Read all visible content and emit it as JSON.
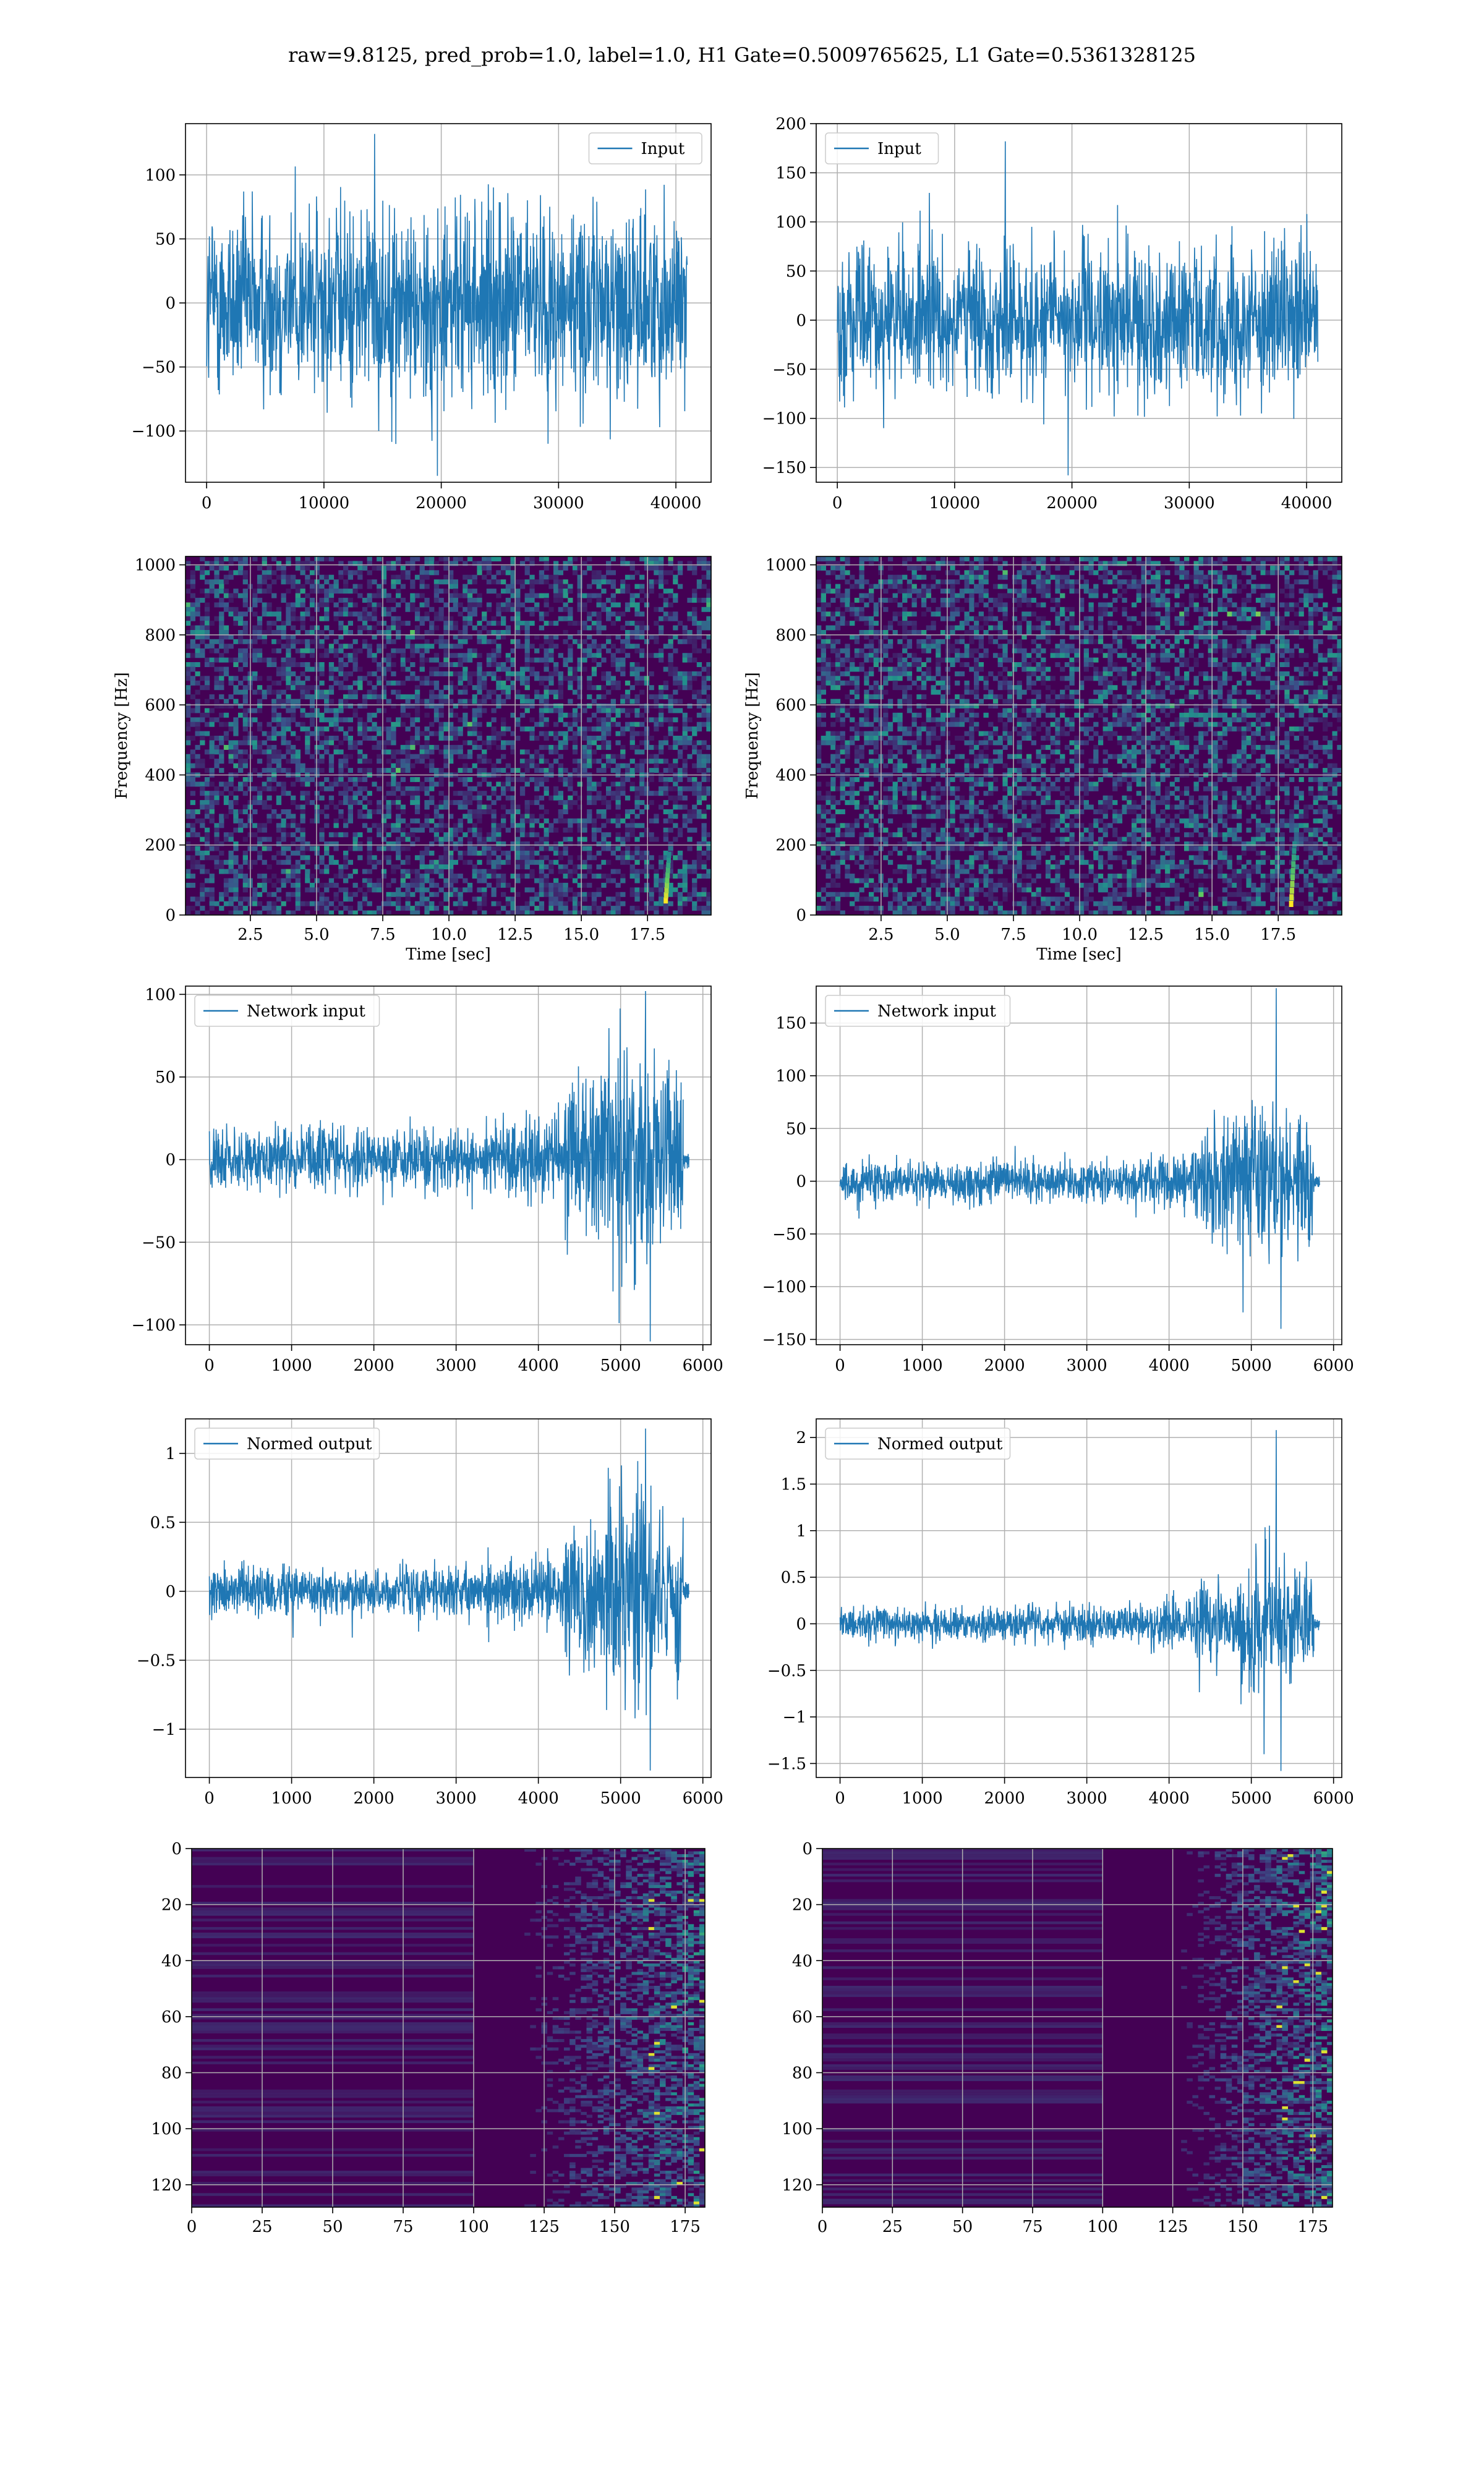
{
  "suptitle": "raw=9.8125, pred_prob=1.0, label=1.0, H1 Gate=0.5009765625, L1 Gate=0.5361328125",
  "colors": {
    "line": "#1f77b4",
    "grid": "#b0b0b0",
    "viridis_low": "#440154",
    "viridis_mid": "#21918c",
    "viridis_high": "#fde725"
  },
  "chart_data": [
    {
      "type": "line",
      "panel": "row1-left",
      "legend": [
        "Input"
      ],
      "legend_loc": "upper right",
      "xlim": [
        -1800,
        43000
      ],
      "ylim": [
        -140,
        140
      ],
      "xticks": [
        0,
        10000,
        20000,
        30000,
        40000
      ],
      "yticks": [
        -100,
        -50,
        0,
        50,
        100
      ],
      "signal": {
        "x_start": 0,
        "x_end": 40960,
        "core_amp": 80,
        "peak_amp": 132,
        "trough_amp": -135,
        "envelope": [
          1,
          1,
          1,
          1,
          1,
          1,
          1,
          1,
          1,
          1
        ]
      },
      "grid": true
    },
    {
      "type": "line",
      "panel": "row1-right",
      "legend": [
        "Input"
      ],
      "legend_loc": "upper left",
      "xlim": [
        -1800,
        43000
      ],
      "ylim": [
        -165,
        200
      ],
      "xticks": [
        0,
        10000,
        20000,
        30000,
        40000
      ],
      "yticks": [
        -150,
        -100,
        -50,
        0,
        50,
        100,
        150,
        200
      ],
      "signal": {
        "x_start": 0,
        "x_end": 40960,
        "core_amp": 80,
        "peak_amp": 182,
        "trough_amp": -158,
        "envelope": [
          1,
          1,
          1,
          1,
          1,
          1,
          1,
          1,
          1,
          1
        ]
      },
      "grid": true
    },
    {
      "type": "heatmap",
      "panel": "row2-left",
      "xlabel": "Time [sec]",
      "ylabel": "Frequency [Hz]",
      "xlim": [
        0.05,
        19.9
      ],
      "ylim": [
        0,
        1024
      ],
      "xticks": [
        "2.5",
        "5.0",
        "7.5",
        "10.0",
        "12.5",
        "15.0",
        "17.5"
      ],
      "yticks": [
        "0",
        "200",
        "400",
        "600",
        "800",
        "1000"
      ],
      "chirp": {
        "t": 18.2,
        "f_low": 40,
        "f_high": 170
      },
      "grid": true
    },
    {
      "type": "heatmap",
      "panel": "row2-right",
      "xlabel": "Time [sec]",
      "ylabel": "Frequency [Hz]",
      "xlim": [
        0.05,
        19.9
      ],
      "ylim": [
        0,
        1024
      ],
      "xticks": [
        "2.5",
        "5.0",
        "7.5",
        "10.0",
        "12.5",
        "15.0",
        "17.5"
      ],
      "yticks": [
        "0",
        "200",
        "400",
        "600",
        "800",
        "1000"
      ],
      "chirp": {
        "t": 18.0,
        "f_low": 30,
        "f_high": 200
      },
      "grid": true
    },
    {
      "type": "line",
      "panel": "row3-left",
      "legend": [
        "Network input"
      ],
      "legend_loc": "upper left",
      "xlim": [
        -290,
        6100
      ],
      "ylim": [
        -112,
        105
      ],
      "xticks": [
        0,
        1000,
        2000,
        3000,
        4000,
        5000,
        6000
      ],
      "yticks": [
        -100,
        -50,
        0,
        50,
        100
      ],
      "signal": {
        "x_start": 0,
        "x_end": 5760,
        "core_amp": 20,
        "peak_amp": 102,
        "trough_amp": -110,
        "envelope": [
          1,
          1,
          1,
          1,
          1,
          1,
          1.1,
          1.25,
          1.45,
          2.8,
          4.2,
          3.2
        ],
        "tail_to": 5830
      },
      "grid": true
    },
    {
      "type": "line",
      "panel": "row3-right",
      "legend": [
        "Network input"
      ],
      "legend_loc": "upper left",
      "xlim": [
        -290,
        6100
      ],
      "ylim": [
        -155,
        185
      ],
      "xticks": [
        0,
        1000,
        2000,
        3000,
        4000,
        5000,
        6000
      ],
      "yticks": [
        -150,
        -100,
        -50,
        0,
        50,
        100,
        150
      ],
      "signal": {
        "x_start": 0,
        "x_end": 5760,
        "core_amp": 20,
        "peak_amp": 183,
        "trough_amp": -140,
        "envelope": [
          1,
          1,
          1,
          1,
          1,
          1,
          1,
          1.15,
          1.45,
          2.6,
          4.5,
          3.4
        ],
        "tail_to": 5830
      },
      "grid": true
    },
    {
      "type": "line",
      "panel": "row4-left",
      "legend": [
        "Normed output"
      ],
      "legend_loc": "upper left",
      "xlim": [
        -290,
        6100
      ],
      "ylim": [
        -1.35,
        1.25
      ],
      "xticks": [
        0,
        1000,
        2000,
        3000,
        4000,
        5000,
        6000
      ],
      "yticks": [
        -1.0,
        -0.5,
        0.0,
        0.5,
        1.0
      ],
      "signal": {
        "x_start": 0,
        "x_end": 5760,
        "core_amp": 0.2,
        "peak_amp": 1.18,
        "trough_amp": -1.3,
        "envelope": [
          1,
          1,
          1,
          1,
          1,
          1,
          1.1,
          1.25,
          1.45,
          2.8,
          4.2,
          3.2
        ],
        "tail_to": 5830
      },
      "grid": true
    },
    {
      "type": "line",
      "panel": "row4-right",
      "legend": [
        "Normed output"
      ],
      "legend_loc": "upper left",
      "xlim": [
        -290,
        6100
      ],
      "ylim": [
        -1.65,
        2.2
      ],
      "xticks": [
        0,
        1000,
        2000,
        3000,
        4000,
        5000,
        6000
      ],
      "yticks": [
        -1.5,
        -1.0,
        -0.5,
        0.0,
        0.5,
        1.0,
        1.5,
        2.0
      ],
      "signal": {
        "x_start": 0,
        "x_end": 5760,
        "core_amp": 0.2,
        "peak_amp": 2.08,
        "trough_amp": -1.58,
        "envelope": [
          1,
          1,
          1,
          1,
          1,
          1,
          1,
          1.15,
          1.45,
          2.6,
          4.5,
          3.4
        ],
        "tail_to": 5830
      },
      "grid": true
    },
    {
      "type": "heatmap",
      "panel": "row5-left",
      "xlim": [
        0,
        182
      ],
      "ylim": [
        128,
        0
      ],
      "xticks": [
        "0",
        "25",
        "50",
        "75",
        "100",
        "125",
        "150",
        "175"
      ],
      "yticks": [
        "0",
        "20",
        "40",
        "60",
        "80",
        "100",
        "120"
      ],
      "onset_col": 110,
      "grid": true
    },
    {
      "type": "heatmap",
      "panel": "row5-right",
      "xlim": [
        0,
        182
      ],
      "ylim": [
        128,
        0
      ],
      "xticks": [
        "0",
        "25",
        "50",
        "75",
        "100",
        "125",
        "150",
        "175"
      ],
      "yticks": [
        "0",
        "20",
        "40",
        "60",
        "80",
        "100",
        "120"
      ],
      "onset_col": 120,
      "grid": true
    }
  ]
}
